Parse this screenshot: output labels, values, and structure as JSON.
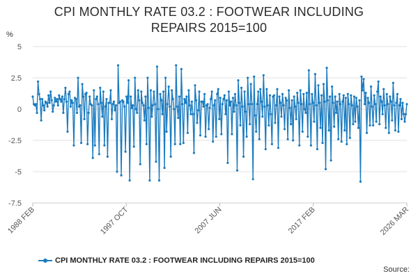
{
  "colors": {
    "series": "#1b7bbf",
    "grid": "#e2e2e2",
    "axis_text": "#555555"
  },
  "title_line1": "CPI MONTHLY RATE 03.2 : FOOTWEAR INCLUDING",
  "title_line2": "REPAIRS 2015=100",
  "source_label": "Source:",
  "chart_data": {
    "type": "line",
    "title": "CPI MONTHLY RATE 03.2 : FOOTWEAR INCLUDING REPAIRS 2015=100",
    "ylabel": "%",
    "xlabel": "",
    "ylim": [
      -7.5,
      5
    ],
    "yticks": [
      5,
      2.5,
      0,
      -2.5,
      -5,
      -7.5
    ],
    "ytick_labels": [
      "5",
      "2.5",
      "0",
      "-2.5",
      "-5",
      "-7.5"
    ],
    "x_range": [
      "1988 FEB",
      "2026 MAR"
    ],
    "xtick_labels": [
      "1988 FEB",
      "1997 OCT",
      "2007 JUN",
      "2017 FEB",
      "2026 MAR"
    ],
    "grid": true,
    "legend_position": "bottom",
    "series": [
      {
        "name": "CPI MONTHLY RATE 03.2 : FOOTWEAR INCLUDING REPAIRS 2015=100",
        "period": "monthly",
        "values": [
          1.0,
          0.4,
          0.3,
          0.4,
          -0.3,
          2.2,
          1.2,
          0.8,
          -0.9,
          0.8,
          0.3,
          -0.1,
          0.6,
          0.5,
          0.2,
          1.1,
          0.5,
          1.4,
          0.7,
          -0.2,
          0.3,
          0.9,
          0.6,
          0.8,
          0.3,
          1.1,
          0.8,
          0.6,
          1.0,
          -0.3,
          0.8,
          1.7,
          0.6,
          -1.8,
          1.2,
          1.4,
          0.2,
          0.7,
          0.5,
          -2.9,
          0.9,
          0.8,
          -0.3,
          2.5,
          0.2,
          0.3,
          -2.7,
          2.0,
          1.0,
          -0.8,
          1.2,
          1.3,
          -2.8,
          -0.3,
          1.0,
          0.4,
          0.3,
          -3.9,
          1.5,
          -2.9,
          0.8,
          1.0,
          0.4,
          -3.6,
          1.7,
          0.5,
          -0.6,
          1.4,
          -2.9,
          0.2,
          0.8,
          -3.8,
          0.5,
          0.5,
          1.5,
          -0.8,
          0.4,
          0.6,
          -0.1,
          0.3,
          -5.0,
          3.5,
          0.5,
          0.6,
          -5.3,
          0.7,
          0.6,
          0.2,
          -3.4,
          1.0,
          0.5,
          2.3,
          -5.7,
          1.0,
          0.1,
          0.3,
          -3.0,
          2.5,
          0.0,
          -0.3,
          1.5,
          0.7,
          -4.4,
          1.4,
          0.5,
          0.3,
          -0.9,
          1.0,
          -2.8,
          2.5,
          0.1,
          -5.7,
          1.5,
          -0.6,
          0.3,
          1.4,
          0.4,
          -4.2,
          3.4,
          0.0,
          -5.7,
          1.2,
          0.7,
          -0.4,
          1.4,
          -4.7,
          2.5,
          -1.8,
          0.4,
          1.8,
          0.2,
          -3.8,
          1.5,
          0.8,
          0.0,
          -2.8,
          3.5,
          0.2,
          -0.7,
          1.0,
          -2.8,
          3.2,
          0.4,
          -2.7,
          0.8,
          0.5,
          1.0,
          -1.9,
          1.5,
          0.3,
          -0.4,
          0.6,
          -0.4,
          -3.5,
          1.9,
          0.7,
          -1.1,
          -0.1,
          1.4,
          -2.1,
          0.6,
          0.6,
          0.2,
          1.2,
          -2.2,
          0.3,
          0.4,
          -1.6,
          0.1,
          0.8,
          1.4,
          -2.6,
          0.3,
          0.7,
          -2.2,
          1.2,
          1.6,
          -0.8,
          0.9,
          -2.0,
          0.4,
          0.8,
          1.1,
          -0.4,
          0.7,
          -4.3,
          1.4,
          0.3,
          0.6,
          -2.0,
          0.9,
          -0.2,
          1.2,
          0.3,
          -4.9,
          2.3,
          0.5,
          -1.3,
          1.7,
          0.2,
          -3.8,
          1.4,
          -0.2,
          -2.2,
          2.5,
          0.4,
          -1.2,
          2.0,
          0.4,
          -5.6,
          2.6,
          -0.5,
          -1.8,
          0.4,
          1.4,
          -2.4,
          1.6,
          0.6,
          -0.6,
          2.7,
          0.2,
          -3.2,
          1.6,
          0.3,
          -1.3,
          1.1,
          -0.4,
          -2.8,
          1.0,
          1.1,
          -1.1,
          0.3,
          1.6,
          -3.1,
          1.0,
          0.5,
          -0.6,
          1.2,
          0.3,
          -1.6,
          0.9,
          0.7,
          -2.4,
          1.5,
          0.1,
          -1.2,
          0.7,
          -2.5,
          1.0,
          0.2,
          -0.8,
          1.3,
          0.5,
          -2.9,
          1.5,
          0.4,
          -1.8,
          1.2,
          0.0,
          -0.3,
          1.3,
          -2.2,
          3.1,
          0.4,
          -2.9,
          1.2,
          0.5,
          -1.0,
          2.8,
          0.3,
          -3.2,
          1.9,
          0.5,
          -1.5,
          1.1,
          -2.7,
          2.0,
          0.6,
          -4.8,
          3.3,
          0.7,
          -1.7,
          1.0,
          -4.1,
          1.8,
          0.5,
          -1.4,
          1.0,
          -0.3,
          0.6,
          -2.4,
          1.2,
          0.4,
          -2.6,
          0.6,
          1.1,
          -1.7,
          0.9,
          -2.8,
          1.2,
          0.4,
          -2.3,
          1.1,
          0.3,
          -1.2,
          1.0,
          -1.0,
          0.9,
          0.2,
          -1.5,
          0.7,
          -5.8,
          2.6,
          1.5,
          2.4,
          0.4,
          1.3,
          -1.9,
          0.9,
          0.5,
          -1.3,
          1.8,
          0.2,
          -1.3,
          1.1,
          0.4,
          -1.0,
          1.4,
          2.2,
          -1.2,
          1.0,
          0.6,
          -0.4,
          1.6,
          0.3,
          -1.5,
          1.2,
          0.4,
          -1.9,
          1.0,
          0.6,
          -0.9,
          2.1,
          0.3,
          -1.7,
          0.5,
          1.2,
          -1.8,
          0.3,
          0.8,
          -0.8,
          0.5,
          -0.4,
          -1.0,
          -0.4,
          0.4
        ]
      }
    ]
  }
}
